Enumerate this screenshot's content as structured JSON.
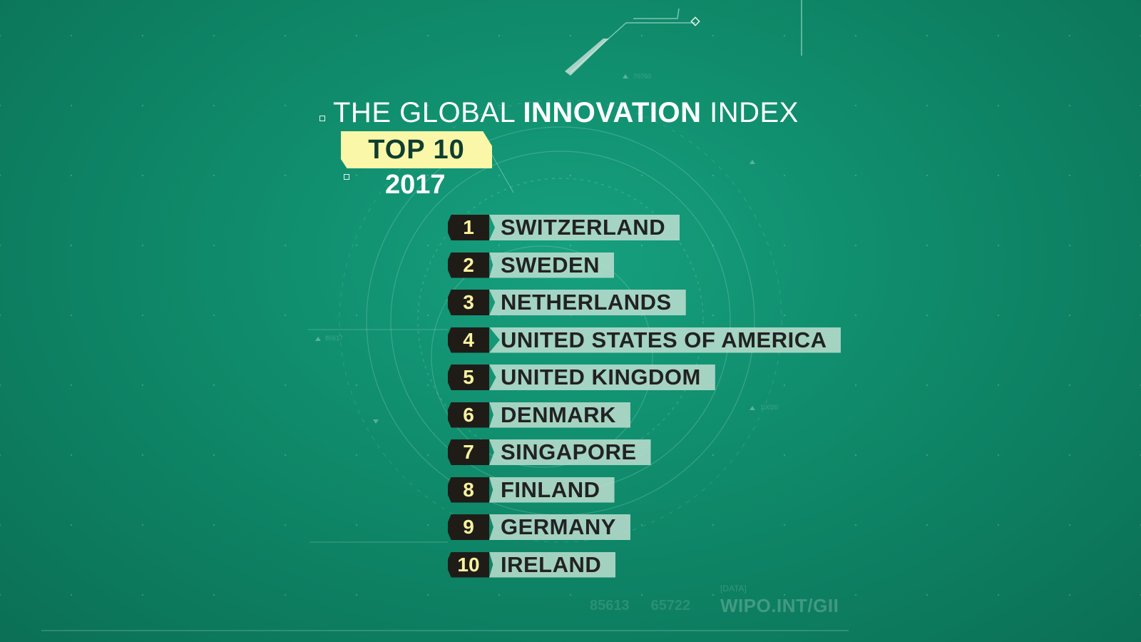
{
  "header": {
    "title_part1": "THE GLOBAL ",
    "title_bold": "INNOVATION",
    "title_part2": " INDEX",
    "badge": "TOP 10",
    "year": "2017"
  },
  "ranking": [
    {
      "rank": "1",
      "country": "SWITZERLAND"
    },
    {
      "rank": "2",
      "country": "SWEDEN"
    },
    {
      "rank": "3",
      "country": "NETHERLANDS"
    },
    {
      "rank": "4",
      "country": "UNITED STATES OF AMERICA"
    },
    {
      "rank": "5",
      "country": "UNITED KINGDOM"
    },
    {
      "rank": "6",
      "country": "DENMARK"
    },
    {
      "rank": "7",
      "country": "SINGAPORE"
    },
    {
      "rank": "8",
      "country": "FINLAND"
    },
    {
      "rank": "9",
      "country": "GERMANY"
    },
    {
      "rank": "10",
      "country": "IRELAND"
    }
  ],
  "footer": {
    "num1": "85613",
    "num2": "65722",
    "data_label": "[DATA]",
    "source": "WIPO.INT/GII"
  },
  "deco_numbers": {
    "a": "70760",
    "b": "85617",
    "c": "10020"
  },
  "colors": {
    "background": "#119474",
    "badge": "#fbf7a8",
    "rank_box": "#1f1c18",
    "rank_text": "#fbf2a0",
    "name_box": "#c4e2d4"
  }
}
